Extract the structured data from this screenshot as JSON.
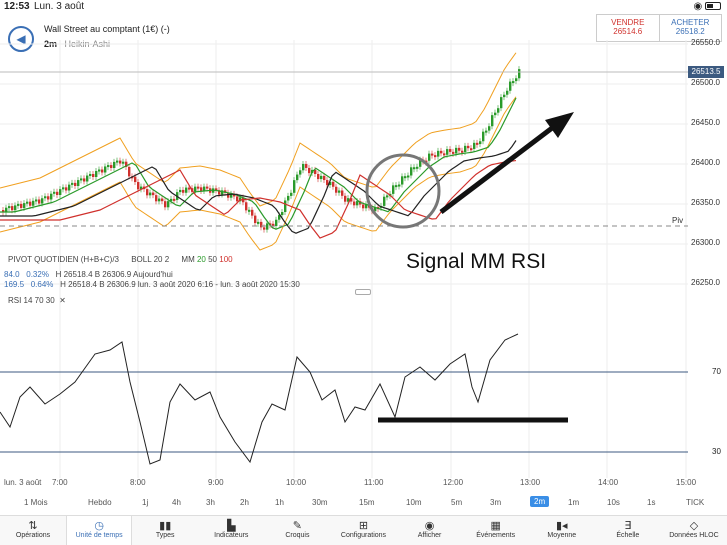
{
  "status": {
    "time": "12:53",
    "date": "Lun. 3 août",
    "right": "◉ ▭"
  },
  "header": {
    "title": "Wall Street au comptant (1€) (-)",
    "period": "2m",
    "chart_type": "Heikin-Ashi"
  },
  "trade": {
    "sell_label": "VENDRE",
    "sell_value": "26514.6",
    "buy_label": "ACHETER",
    "buy_value": "26518.2"
  },
  "price_axis": [
    "26550.0",
    "26500.0",
    "26450.0",
    "26400.0",
    "26350.0",
    "26300.0",
    "26250.0"
  ],
  "price_tag": "26513.5",
  "piv_label": "Piv",
  "indicators": {
    "pivot": "PIVOT  QUOTIDIEN  (H+B+C)/3",
    "boll": "BOLL  20  2",
    "mm_label": "MM",
    "mm_20": "20",
    "mm_50": "50",
    "mm_100": "100",
    "row1_a": "84.0",
    "row1_b": "0.32%",
    "row1_c": "H 26518.4   B 26306.9   Aujourd'hui",
    "row2_a": "169.5",
    "row2_b": "0.64%",
    "row2_c": "H 26518.4   B 26306.9   lun. 3 août 2020 6:16 - lun. 3 août 2020 15:30"
  },
  "annotation": "Signal MM RSI",
  "rsi": {
    "label": "RSI  14  70  30",
    "level_high": "70",
    "level_low": "30"
  },
  "x_axis": [
    "lun. 3 août",
    "7:00",
    "8:00",
    "9:00",
    "10:00",
    "11:00",
    "12:00",
    "13:00",
    "14:00",
    "15:00"
  ],
  "periods": [
    "1 Mois",
    "Hebdo",
    "1j",
    "4h",
    "3h",
    "2h",
    "1h",
    "30m",
    "15m",
    "10m",
    "5m",
    "3m",
    "2m",
    "1m",
    "10s",
    "1s",
    "TICK"
  ],
  "active_period": "2m",
  "toolbar": [
    {
      "label": "Opérations",
      "icon": "⇅"
    },
    {
      "label": "Unité de temps",
      "icon": "◷"
    },
    {
      "label": "Types",
      "icon": "▮▮"
    },
    {
      "label": "Indicateurs",
      "icon": "▙"
    },
    {
      "label": "Croquis",
      "icon": "✎"
    },
    {
      "label": "Configurations",
      "icon": "⊞"
    },
    {
      "label": "Afficher",
      "icon": "◉"
    },
    {
      "label": "Événements",
      "icon": "▦"
    },
    {
      "label": "Moyenne",
      "icon": "▮◂"
    },
    {
      "label": "Échelle",
      "icon": "∃"
    },
    {
      "label": "Données HLOC",
      "icon": "◇"
    }
  ],
  "colors": {
    "accent": "#3a6fb5",
    "up": "#2a9a2a",
    "down": "#d0312d",
    "boll": "#f0a020"
  }
}
